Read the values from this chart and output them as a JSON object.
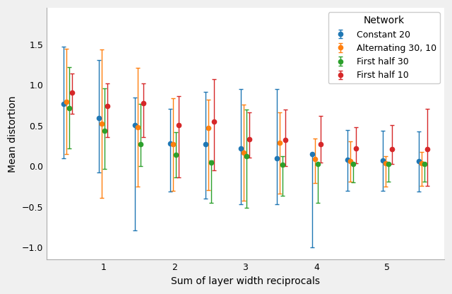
{
  "title": "",
  "xlabel": "Sum of layer width reciprocals",
  "ylabel": "Mean distortion",
  "legend_title": "Network",
  "series": [
    {
      "label": "Constant 20",
      "color": "#1f77b4",
      "x": [
        0.5,
        1.0,
        1.5,
        2.0,
        2.5,
        3.0,
        3.5,
        4.0,
        4.5,
        5.0,
        5.5
      ],
      "y": [
        0.77,
        0.59,
        0.51,
        0.28,
        0.27,
        0.22,
        0.1,
        0.15,
        0.08,
        0.07,
        0.06
      ],
      "yerr_lo": [
        0.67,
        0.67,
        1.3,
        0.59,
        0.67,
        0.69,
        0.57,
        1.15,
        0.38,
        0.37,
        0.37
      ],
      "yerr_hi": [
        0.7,
        0.72,
        0.34,
        0.43,
        0.65,
        0.73,
        0.85,
        0.0,
        0.37,
        0.37,
        0.37
      ]
    },
    {
      "label": "Alternating 30, 10",
      "color": "#ff7f0e",
      "x": [
        0.5,
        1.0,
        1.5,
        2.0,
        2.5,
        3.0,
        3.5,
        4.0,
        4.5,
        5.0,
        5.5
      ],
      "y": [
        0.79,
        0.52,
        0.48,
        0.27,
        0.47,
        0.17,
        0.29,
        0.09,
        0.06,
        0.04,
        0.04
      ],
      "yerr_lo": [
        0.64,
        0.91,
        0.73,
        0.57,
        0.76,
        0.59,
        0.63,
        0.3,
        0.25,
        0.29,
        0.28
      ],
      "yerr_hi": [
        0.66,
        0.92,
        0.73,
        0.57,
        0.35,
        0.59,
        0.37,
        0.25,
        0.25,
        0.08,
        0.14
      ]
    },
    {
      "label": "First half 30",
      "color": "#2ca02c",
      "x": [
        0.5,
        1.0,
        1.5,
        2.0,
        2.5,
        3.0,
        3.5,
        4.0,
        4.5,
        5.0,
        5.5
      ],
      "y": [
        0.72,
        0.44,
        0.27,
        0.14,
        0.05,
        0.12,
        0.02,
        0.03,
        0.03,
        0.03,
        0.03
      ],
      "yerr_lo": [
        0.5,
        0.47,
        0.27,
        0.28,
        0.5,
        0.63,
        0.38,
        0.48,
        0.23,
        0.22,
        0.22
      ],
      "yerr_hi": [
        0.5,
        0.52,
        0.5,
        0.28,
        0.02,
        0.58,
        0.1,
        0.0,
        0.0,
        0.0,
        0.0
      ]
    },
    {
      "label": "First half 10",
      "color": "#d62728",
      "x": [
        0.5,
        1.0,
        1.5,
        2.0,
        2.5,
        3.0,
        3.5,
        4.0,
        4.5,
        5.0,
        5.5
      ],
      "y": [
        0.91,
        0.74,
        0.78,
        0.51,
        0.55,
        0.33,
        0.32,
        0.27,
        0.22,
        0.21,
        0.21
      ],
      "yerr_lo": [
        0.26,
        0.38,
        0.42,
        0.65,
        0.6,
        0.22,
        0.32,
        0.22,
        0.18,
        0.18,
        0.45
      ],
      "yerr_hi": [
        0.23,
        0.28,
        0.24,
        0.35,
        0.52,
        0.33,
        0.38,
        0.35,
        0.26,
        0.3,
        0.5
      ]
    }
  ],
  "xlim": [
    0.2,
    5.8
  ],
  "ylim": [
    -1.15,
    1.95
  ],
  "yticks": [
    -1.0,
    -0.5,
    0.0,
    0.5,
    1.0,
    1.5
  ],
  "xticks": [
    1,
    2,
    3,
    4,
    5
  ],
  "offsets": [
    -0.06,
    -0.02,
    0.02,
    0.06
  ],
  "fig_facecolor": "#f0f0f0",
  "ax_facecolor": "#ffffff"
}
